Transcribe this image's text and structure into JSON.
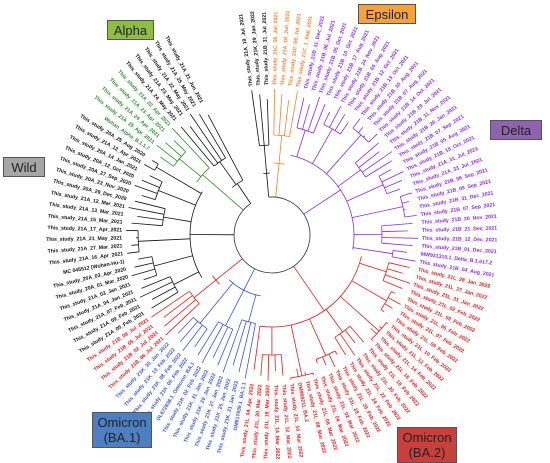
{
  "colors": {
    "alpha": "#2e8b2e",
    "epsilon": "#f07f2d",
    "delta": "#8a2be2",
    "omicron_ba2": "#e31a1c",
    "omicron_ba1": "#3a54d6",
    "wild": "#111111"
  },
  "clades": [
    {
      "id": "alpha",
      "label": "Alpha",
      "fill": "#8fbc45"
    },
    {
      "id": "epsilon",
      "label": "Epsilon",
      "fill": "#f4a33c"
    },
    {
      "id": "delta",
      "label": "Delta",
      "fill": "#8e63b0"
    },
    {
      "id": "wild",
      "label": "Wild",
      "fill": "#a6a6a6"
    },
    {
      "id": "omicron_ba1",
      "label": "Omicron\n(BA.1)",
      "fill": "#4e7fc2"
    },
    {
      "id": "omicron_ba2",
      "label": "Omicron\n(BA.2)",
      "fill": "#c8403b"
    }
  ],
  "tree": {
    "tips": [
      {
        "label": "This_study_21A_19_Jul_2021",
        "clade": "wild"
      },
      {
        "label": "This_study_21K_29_Jan_2022",
        "clade": "wild"
      },
      {
        "label": "This_study_21B_31_Jul_2021",
        "clade": "wild"
      },
      {
        "label": "This_study_21C_06_Jul_2021",
        "clade": "epsilon"
      },
      {
        "label": "This_study_21A_18_Jun_2021",
        "clade": "epsilon"
      },
      {
        "label": "This_study_21C_09_Jul_2021",
        "clade": "epsilon"
      },
      {
        "label": "This_study_21C_1_Sep_2021",
        "clade": "epsilon"
      },
      {
        "label": "This_study_21B_11_Dec_2021",
        "clade": "delta"
      },
      {
        "label": "This_study_21B_06_Jul_2021",
        "clade": "delta"
      },
      {
        "label": "This_study_21B_05_Oct_2021",
        "clade": "delta"
      },
      {
        "label": "This_study_21B_10_Oct_2021",
        "clade": "delta"
      },
      {
        "label": "This_study_21B_17_Aug_2021",
        "clade": "delta"
      },
      {
        "label": "This_study_21B_24_Nov_2021",
        "clade": "delta"
      },
      {
        "label": "This_study_21B_04_Aug_2021",
        "clade": "delta"
      },
      {
        "label": "This_study_21B_12_Oct_2021",
        "clade": "delta"
      },
      {
        "label": "This_study_21B_13_Oct_2021",
        "clade": "delta"
      },
      {
        "label": "This_study_21B_30_Aug_2021",
        "clade": "delta"
      },
      {
        "label": "This_study_21B_07_Aug_2021",
        "clade": "delta"
      },
      {
        "label": "This_study_21B_14_Oct_2021",
        "clade": "delta"
      },
      {
        "label": "This_study_21B_29_Jul_2021",
        "clade": "delta"
      },
      {
        "label": "This_study_21B_11_Nov_2021",
        "clade": "delta"
      },
      {
        "label": "This_study_21B_26_Jan_2021",
        "clade": "delta"
      },
      {
        "label": "This_study_21B_07_Sep_2021",
        "clade": "delta"
      },
      {
        "label": "This_study_21B_05_Aug_2021",
        "clade": "delta"
      },
      {
        "label": "This_study_21B_15_Oct_2021",
        "clade": "delta"
      },
      {
        "label": "This_study_21A_31_Jul_2021",
        "clade": "delta"
      },
      {
        "label": "This_study_21A_33_Jul_2021",
        "clade": "delta"
      },
      {
        "label": "This_study_21B_06_Sep_2021",
        "clade": "delta"
      },
      {
        "label": "This_study_21B_09_Sep_2021",
        "clade": "delta"
      },
      {
        "label": "This_study_21B_31_Dec_2021",
        "clade": "delta"
      },
      {
        "label": "This_study_21B_07_Sep_2021",
        "clade": "delta"
      },
      {
        "label": "This_study_21B_20_Nov_2021",
        "clade": "delta"
      },
      {
        "label": "This_study_21B_21_Dec_2021",
        "clade": "delta"
      },
      {
        "label": "This_study_21B_12_Dec_2021",
        "clade": "delta"
      },
      {
        "label": "This_study_21B_01_Dec_2021",
        "clade": "delta"
      },
      {
        "label": "MW931310.1_Delta_B.1.617.2",
        "clade": "delta"
      },
      {
        "label": "This_study_21B_04_Aug_2021",
        "clade": "delta"
      },
      {
        "label": "This_study_21L_28_Jan_2022",
        "clade": "omicron_ba2"
      },
      {
        "label": "This_study_21L_27_Jan_2022",
        "clade": "omicron_ba2"
      },
      {
        "label": "This_study_21L_31_Jan_2022",
        "clade": "omicron_ba2"
      },
      {
        "label": "This_study_21L_02_Feb_2022",
        "clade": "omicron_ba2"
      },
      {
        "label": "This_study_21L_03_Feb_2022",
        "clade": "omicron_ba2"
      },
      {
        "label": "This_study_21L_05_Feb_2022",
        "clade": "omicron_ba2"
      },
      {
        "label": "This_study_21L_07_Feb_2022",
        "clade": "omicron_ba2"
      },
      {
        "label": "This_study_21L_09_Feb_2022",
        "clade": "omicron_ba2"
      },
      {
        "label": "This_study_21L_10_Feb_2022",
        "clade": "omicron_ba2"
      },
      {
        "label": "This_study_21L_12_Feb_2022",
        "clade": "omicron_ba2"
      },
      {
        "label": "This_study_21L_14_Feb_2022",
        "clade": "omicron_ba2"
      },
      {
        "label": "This_study_21L_16_Feb_2022",
        "clade": "omicron_ba2"
      },
      {
        "label": "This_study_21L_18_Feb_2022",
        "clade": "omicron_ba2"
      },
      {
        "label": "This_study_21L_20_Feb_2022",
        "clade": "omicron_ba2"
      },
      {
        "label": "This_study_21L_22_Feb_2022",
        "clade": "omicron_ba2"
      },
      {
        "label": "This_study_21L_24_Feb_2022",
        "clade": "omicron_ba2"
      },
      {
        "label": "This_study_21L_26_Feb_2022",
        "clade": "omicron_ba2"
      },
      {
        "label": "This_study_21L_28_Feb_2022",
        "clade": "omicron_ba2"
      },
      {
        "label": "This_study_21L_02_Mar_2022",
        "clade": "omicron_ba2"
      },
      {
        "label": "This_study_21L_04_Mar_2022",
        "clade": "omicron_ba2"
      },
      {
        "label": "This_study_21L_06_Mar_2022",
        "clade": "omicron_ba2"
      },
      {
        "label": "This_study_21L_08_Mar_2022",
        "clade": "omicron_ba2"
      },
      {
        "label": "OM958211_BA.2",
        "clade": "omicron_ba2"
      },
      {
        "label": "This_study_21L_10_Mar_2022",
        "clade": "omicron_ba2"
      },
      {
        "label": "This_study_21L_12_Mar_2022",
        "clade": "omicron_ba2"
      },
      {
        "label": "This_study_21L_14_Mar_2022",
        "clade": "omicron_ba2"
      },
      {
        "label": "This_study_21L_18_Mar_2022",
        "clade": "omicron_ba2"
      },
      {
        "label": "This_study_21L_20_Mar_2022",
        "clade": "omicron_ba2"
      },
      {
        "label": "This_study_21L_04_Apr_2022",
        "clade": "omicron_ba2"
      },
      {
        "label": "OM617939.1_BA.1.1",
        "clade": "omicron_ba1"
      },
      {
        "label": "This_study_21K_21_Jan_2022",
        "clade": "omicron_ba1"
      },
      {
        "label": "This_study_21K_25_Jan_2022",
        "clade": "omicron_ba1"
      },
      {
        "label": "This_study_21K_27_Jan_2022",
        "clade": "omicron_ba1"
      },
      {
        "label": "This_study_21K_29_Jan_2022",
        "clade": "omicron_ba1"
      },
      {
        "label": "This_study_21K_31_Jan_2022",
        "clade": "omicron_ba1"
      },
      {
        "label": "This_study_21K_02_Feb_2022",
        "clade": "omicron_ba1"
      },
      {
        "label": "OL672836.1_Omicron_BA.1",
        "clade": "omicron_ba1"
      },
      {
        "label": "This_study_21K_05_Feb_2022",
        "clade": "omicron_ba1"
      },
      {
        "label": "This_study_21K_08_Feb_2022",
        "clade": "omicron_ba1"
      },
      {
        "label": "This_study_21K_10_Feb_2022",
        "clade": "omicron_ba1"
      },
      {
        "label": "This_study_21K_30_Jan_2022",
        "clade": "omicron_ba1"
      },
      {
        "label": "This_study_21B_06_Jul_2021",
        "clade": "omicron_ba2"
      },
      {
        "label": "This_study_21B_02_Jul_2021",
        "clade": "omicron_ba2"
      },
      {
        "label": "This_study_21B_05_Jul_2021",
        "clade": "omicron_ba2"
      },
      {
        "label": "This_study_21B_09_Jul_2021",
        "clade": "omicron_ba2"
      },
      {
        "label": "This_study_21A_05_Feb_2021",
        "clade": "wild"
      },
      {
        "label": "This_study_21A_09_Feb_2021",
        "clade": "wild"
      },
      {
        "label": "This_study_21A_07_Feb_2021",
        "clade": "wild"
      },
      {
        "label": "This_study_21A_04_Jan_2021",
        "clade": "wild"
      },
      {
        "label": "This_study_21A_03_Jan_2021",
        "clade": "wild"
      },
      {
        "label": "This_study_20A_01_Mar_2020",
        "clade": "wild"
      },
      {
        "label": "This_study_20A_03_Apr_2020",
        "clade": "wild"
      },
      {
        "label": "MC 045512 (Wuhan-Hu-1)",
        "clade": "wild"
      },
      {
        "label": "This_study_21A_16_Apr_2021",
        "clade": "wild"
      },
      {
        "label": "This_study_21A_27_Mar_2021",
        "clade": "wild"
      },
      {
        "label": "This_study_21A_21_May_2021",
        "clade": "wild"
      },
      {
        "label": "This_study_21A_17_Apr_2021",
        "clade": "wild"
      },
      {
        "label": "This_study_21A_15_Mar_2021",
        "clade": "wild"
      },
      {
        "label": "This_study_21A_13_Mar_2021",
        "clade": "wild"
      },
      {
        "label": "This_study_21A_12_Mar_2021",
        "clade": "wild"
      },
      {
        "label": "This_study_20A_29_Dec_2020",
        "clade": "wild"
      },
      {
        "label": "This_study_20A_23_Nov_2020",
        "clade": "wild"
      },
      {
        "label": "This_study_20A_27_Sep_2020",
        "clade": "wild"
      },
      {
        "label": "This_study_20A_12_Oct_2020",
        "clade": "wild"
      },
      {
        "label": "This_study_20A_14_Jan_2021",
        "clade": "wild"
      },
      {
        "label": "This_study_21A_12_Apr_2021",
        "clade": "wild"
      },
      {
        "label": "This_study_20A_25_Aug_2020",
        "clade": "wild"
      },
      {
        "label": "Wuhan_Alpha_B.1.1.7",
        "clade": "alpha"
      },
      {
        "label": "This_study_21A_25_Apr_2021",
        "clade": "alpha"
      },
      {
        "label": "This_study_21A_24_Apr_2021",
        "clade": "alpha"
      },
      {
        "label": "This_study_21A_23_Apr_2021",
        "clade": "alpha"
      },
      {
        "label": "This_study_21A_22_Apr_2021",
        "clade": "alpha"
      },
      {
        "label": "This_study_21A_24_May_2021",
        "clade": "wild"
      },
      {
        "label": "This_study_21A_23_May_2021",
        "clade": "wild"
      },
      {
        "label": "This_study_21A_22_May_2021",
        "clade": "wild"
      },
      {
        "label": "This_study_21A_25_May_2021",
        "clade": "wild"
      },
      {
        "label": "This_study_21A_21_Jun_2021",
        "clade": "wild"
      }
    ]
  }
}
